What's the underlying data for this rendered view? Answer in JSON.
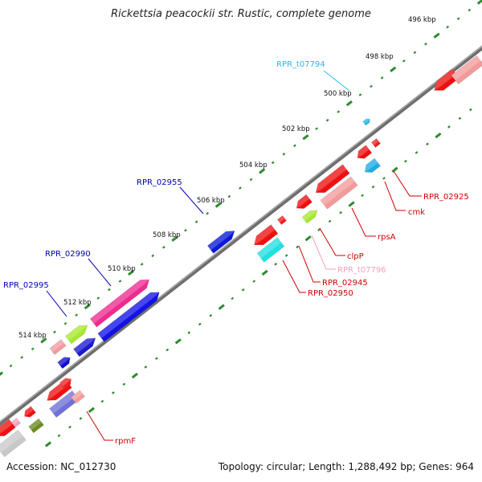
{
  "title": "Rickettsia peacockii str. Rustic, complete genome",
  "footer": {
    "accession": "Accession: NC_012730",
    "stats": "Topology: circular; Length: 1,288,492 bp; Genes: 964"
  },
  "colors": {
    "backbone": "#8a8a8a",
    "tick_dots": "#2e8b2e",
    "forward_label": "#0000b0",
    "reverse_label": "#d00000",
    "trna_label_forward": "#22bbe6",
    "trna_label_reverse": "#f4a0c0"
  },
  "kbp_ticks": [
    "496 kbp",
    "498 kbp",
    "500 kbp",
    "502 kbp",
    "504 kbp",
    "506 kbp",
    "508 kbp",
    "510 kbp",
    "512 kbp",
    "514 kbp"
  ],
  "gene_labels": {
    "forward": [
      "RPR_t07794",
      "RPR_02955",
      "RPR_02990",
      "RPR_02995"
    ],
    "reverse": [
      "RPR_02925",
      "cmk",
      "rpsA",
      "clpP",
      "RPR_t07796",
      "RPR_02945",
      "RPR_02950",
      "rpmF"
    ]
  }
}
